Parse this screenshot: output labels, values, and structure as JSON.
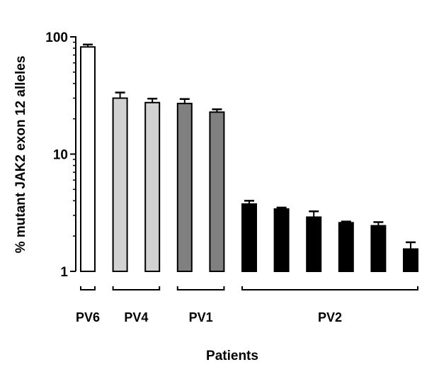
{
  "chart_data": {
    "type": "bar",
    "title": "",
    "xlabel": "Patients",
    "ylabel": "% mutant JAK2 exon 12 alleles",
    "yscale": "log",
    "ylim": [
      1,
      100
    ],
    "yticks": [
      {
        "value": 1,
        "label": "1"
      },
      {
        "value": 10,
        "label": "10"
      },
      {
        "value": 100,
        "label": "100"
      }
    ],
    "grid": false,
    "legend": "none",
    "colors": {
      "PV6": "#ffffff",
      "PV4": "#d2d2d2",
      "PV1": "#808080",
      "PV2": "#000000",
      "outline": "#000000"
    },
    "bars": [
      {
        "group": "PV6",
        "value": 82,
        "error": 4
      },
      {
        "group": "PV4",
        "value": 30,
        "error": 3.5
      },
      {
        "group": "PV4",
        "value": 27.5,
        "error": 2.2
      },
      {
        "group": "PV1",
        "value": 27,
        "error": 2.5
      },
      {
        "group": "PV1",
        "value": 22.8,
        "error": 1.3
      },
      {
        "group": "PV2",
        "value": 3.75,
        "error": 0.25
      },
      {
        "group": "PV2",
        "value": 3.4,
        "error": 0.1
      },
      {
        "group": "PV2",
        "value": 2.9,
        "error": 0.35
      },
      {
        "group": "PV2",
        "value": 2.6,
        "error": 0.06
      },
      {
        "group": "PV2",
        "value": 2.45,
        "error": 0.18
      },
      {
        "group": "PV2",
        "value": 1.55,
        "error": 0.22
      }
    ],
    "groups": [
      {
        "label": "PV6",
        "first": 0,
        "last": 0
      },
      {
        "label": "PV4",
        "first": 1,
        "last": 2
      },
      {
        "label": "PV1",
        "first": 3,
        "last": 4
      },
      {
        "label": "PV2",
        "first": 5,
        "last": 10
      }
    ]
  }
}
